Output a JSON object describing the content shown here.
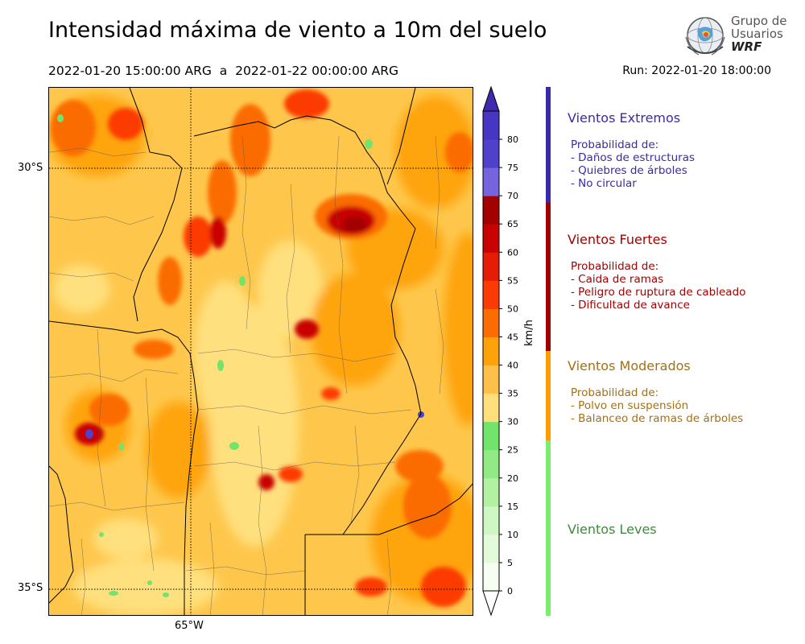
{
  "title": "Intensidad máxima de viento a 10m del suelo",
  "subtitle": "2022-01-20 15:00:00 ARG  a  2022-01-22 00:00:00 ARG",
  "run_label": "Run: 2022-01-20 18:00:00",
  "logo": {
    "line1": "Grupo de",
    "line2": "Usuarios",
    "line3": "WRF"
  },
  "map": {
    "lat_labels": [
      "30°S",
      "35°S"
    ],
    "lon_labels": [
      "65°W"
    ],
    "background_color": "#fec74c"
  },
  "colorbar": {
    "unit": "km/h",
    "ticks": [
      "0",
      "5",
      "10",
      "15",
      "20",
      "25",
      "30",
      "35",
      "40",
      "45",
      "50",
      "55",
      "60",
      "65",
      "70",
      "75",
      "80"
    ],
    "colors": [
      "#f7fdf3",
      "#e4fbd9",
      "#cef8c3",
      "#b2f1a2",
      "#92ea84",
      "#72e46c",
      "#fedf7b",
      "#ffc04a",
      "#fea209",
      "#fb6c03",
      "#fc3a04",
      "#e61d04",
      "#c80101",
      "#a30000",
      "#7564dd",
      "#5140cb",
      "#4736c3"
    ],
    "under_color": "#ffffff",
    "over_color": "#3f2aad"
  },
  "legend": [
    {
      "name": "Vientos Extremos",
      "color": "#3a2aa9",
      "bar_color": "#3a2aa9",
      "prob_title": "Probabilidad de:",
      "items": [
        "- Daños de estructuras",
        "- Quiebres de árboles",
        "- No circular"
      ]
    },
    {
      "name": "Vientos Fuertes",
      "color": "#9e0000",
      "bar_color": "#9e0000",
      "prob_title": "Probabilidad de:",
      "items": [
        "- Caida de ramas",
        "- Peligro de ruptura de cableado",
        "- Dificultad de avance"
      ]
    },
    {
      "name": "Vientos Moderados",
      "color": "#a8700a",
      "bar_color": "#fe9c00",
      "prob_title": "Probabilidad de:",
      "items": [
        "- Polvo en suspensión",
        "- Balanceo de ramas de árboles"
      ]
    },
    {
      "name": "Vientos Leves",
      "color": "#3e8a3e",
      "bar_color": "#7aec6e",
      "prob_title": "",
      "items": []
    }
  ]
}
